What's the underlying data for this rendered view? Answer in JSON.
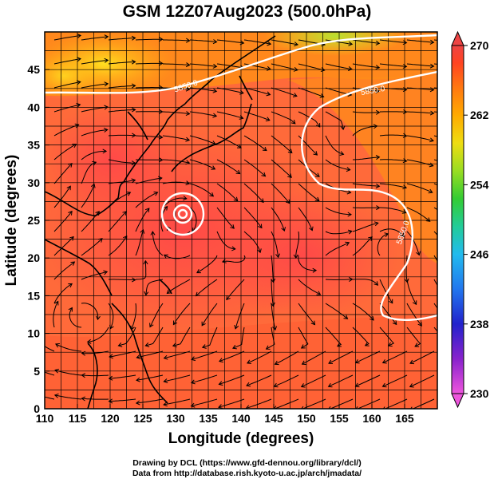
{
  "title": "GSM 12Z07Aug2023 (500.0hPa)",
  "x_axis": {
    "label": "Longitude (degrees)",
    "range": [
      110,
      170
    ],
    "ticks": [
      110,
      115,
      120,
      125,
      130,
      135,
      140,
      145,
      150,
      155,
      160,
      165
    ]
  },
  "y_axis": {
    "label": "Latitude (degrees)",
    "range": [
      0,
      50
    ],
    "ticks": [
      0,
      5,
      10,
      15,
      20,
      25,
      30,
      35,
      40,
      45
    ]
  },
  "colorbar": {
    "range": [
      230,
      270
    ],
    "ticks": [
      230,
      238,
      246,
      254,
      262,
      270
    ],
    "colors": [
      "#ee55dd",
      "#8822cc",
      "#2222cc",
      "#2277ee",
      "#22bbee",
      "#22cc99",
      "#33cc33",
      "#99dd22",
      "#eedd11",
      "#ffaa00",
      "#ff7711",
      "#ff4422",
      "#ee4444"
    ]
  },
  "contour_labels": [
    "5850.0",
    "5850.0",
    "5850.0"
  ],
  "background_colors": {
    "warm": "#ff6a3a",
    "hot": "#ff4a4a",
    "orange": "#ff8c1a",
    "yellow": "#ffd21a",
    "green": "#c8e01a"
  },
  "footer": {
    "line1": "Drawing by DCL (https://www.gfd-dennou.org/library/dcl/)",
    "line2": "Data from http://database.rish.kyoto-u.ac.jp/arch/jmadata/"
  }
}
